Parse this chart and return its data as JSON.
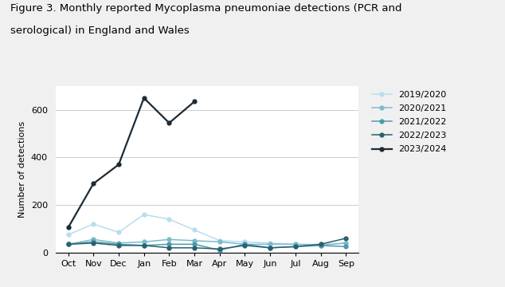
{
  "title_line1": "Figure 3. Monthly reported Mycoplasma pneumoniae detections (PCR and",
  "title_line2": "serological) in England and Wales",
  "ylabel": "Number of detections",
  "months": [
    "Oct",
    "Nov",
    "Dec",
    "Jan",
    "Feb",
    "Mar",
    "Apr",
    "May",
    "Jun",
    "Jul",
    "Aug",
    "Sep"
  ],
  "series": {
    "2019/2020": [
      75,
      120,
      85,
      160,
      140,
      95,
      50,
      45,
      40,
      35,
      35,
      40
    ],
    "2020/2021": [
      35,
      55,
      40,
      45,
      55,
      50,
      45,
      35,
      35,
      35,
      30,
      40
    ],
    "2021/2022": [
      35,
      45,
      35,
      30,
      35,
      35,
      10,
      35,
      20,
      25,
      30,
      25
    ],
    "2022/2023": [
      35,
      40,
      30,
      30,
      20,
      20,
      15,
      30,
      20,
      25,
      35,
      60
    ],
    "2023/2024": [
      105,
      290,
      370,
      650,
      545,
      635,
      null,
      null,
      null,
      null,
      null,
      null
    ]
  },
  "colors": {
    "2019/2020": "#b8ddef",
    "2020/2021": "#7bbccc",
    "2021/2022": "#4d9baa",
    "2022/2023": "#2a6070",
    "2023/2024": "#1c2b35"
  },
  "ylim": [
    0,
    700
  ],
  "yticks": [
    0,
    200,
    400,
    600
  ],
  "background_color": "#f0f0f0",
  "plot_bg": "#ffffff",
  "grid_color": "#cccccc",
  "title_fontsize": 9.5,
  "label_fontsize": 8,
  "tick_fontsize": 8,
  "legend_fontsize": 8
}
